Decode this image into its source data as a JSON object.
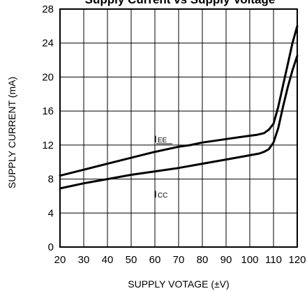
{
  "chart_data": {
    "type": "line",
    "title": "Supply Current vs Supply Voltage",
    "xlabel": "SUPPLY VOTAGE (±V)",
    "ylabel": "SUPPLY CURRENT (mA)",
    "xlim": [
      20,
      120
    ],
    "ylim": [
      0,
      28
    ],
    "x_ticks": [
      20,
      30,
      40,
      50,
      60,
      70,
      80,
      90,
      100,
      110,
      120
    ],
    "y_ticks": [
      0,
      4,
      8,
      12,
      16,
      20,
      24,
      28
    ],
    "grid": true,
    "series": [
      {
        "name": "IEE",
        "label_main": "I",
        "label_sub": "EE",
        "x": [
          20,
          30,
          40,
          50,
          60,
          70,
          75,
          80,
          85,
          90,
          95,
          100,
          103,
          106,
          108,
          110,
          112,
          114,
          116,
          118,
          120
        ],
        "y": [
          8.4,
          9.1,
          9.8,
          10.5,
          11.2,
          11.8,
          12.0,
          12.3,
          12.5,
          12.7,
          12.9,
          13.1,
          13.2,
          13.4,
          13.8,
          14.5,
          16.5,
          19.0,
          21.5,
          24.0,
          26.0
        ]
      },
      {
        "name": "ICC",
        "label_main": "I",
        "label_sub": "CC",
        "x": [
          20,
          30,
          40,
          50,
          60,
          70,
          80,
          90,
          100,
          104,
          106,
          108,
          110,
          112,
          114,
          116,
          118,
          120
        ],
        "y": [
          6.9,
          7.5,
          8.0,
          8.5,
          8.9,
          9.3,
          9.8,
          10.3,
          10.8,
          11.0,
          11.2,
          11.5,
          12.3,
          14.0,
          16.5,
          18.8,
          20.8,
          22.5
        ]
      }
    ]
  }
}
